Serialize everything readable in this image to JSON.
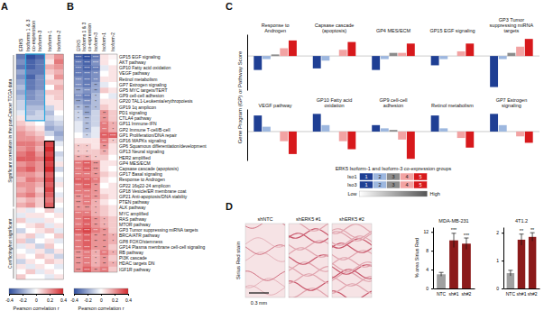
{
  "chart_data": [
    {
      "type": "heatmap",
      "panel": "A",
      "columns": [
        "ERK5",
        "Isoforms 1 & 3 co-expression",
        "Isoform-3",
        "Isoform-1",
        "Isoform-2"
      ],
      "values": [
        [
          -0.3,
          -0.4,
          -0.35,
          0.1,
          0.2
        ],
        [
          -0.25,
          -0.35,
          -0.3,
          0.05,
          0.25
        ],
        [
          -0.3,
          -0.35,
          -0.3,
          0.15,
          0.2
        ],
        [
          -0.2,
          -0.3,
          -0.3,
          0.1,
          0.15
        ],
        [
          -0.25,
          -0.35,
          -0.25,
          0.05,
          0.2
        ],
        [
          -0.2,
          -0.3,
          -0.25,
          0.1,
          0.1
        ],
        [
          -0.15,
          -0.3,
          -0.25,
          0.0,
          0.15
        ],
        [
          -0.2,
          -0.25,
          -0.2,
          0.1,
          0.1
        ],
        [
          -0.15,
          -0.25,
          -0.2,
          0.05,
          0.1
        ],
        [
          -0.1,
          -0.2,
          -0.2,
          0.05,
          0.05
        ],
        [
          -0.1,
          -0.15,
          -0.15,
          -0.1,
          0.05
        ],
        [
          -0.05,
          -0.15,
          -0.1,
          -0.15,
          0.0
        ],
        [
          0.05,
          -0.1,
          -0.1,
          -0.1,
          -0.05
        ],
        [
          0.1,
          0.05,
          0.0,
          -0.15,
          -0.1
        ],
        [
          0.15,
          0.1,
          0.05,
          -0.2,
          -0.15
        ],
        [
          0.2,
          0.15,
          0.1,
          -0.1,
          -0.2
        ],
        [
          0.2,
          0.2,
          0.15,
          0.0,
          -0.15
        ],
        [
          0.25,
          0.25,
          0.2,
          0.35,
          -0.05
        ],
        [
          0.2,
          0.25,
          0.15,
          0.4,
          0.0
        ],
        [
          0.25,
          0.3,
          0.2,
          0.35,
          -0.1
        ],
        [
          0.3,
          0.3,
          0.25,
          0.4,
          -0.05
        ],
        [
          0.2,
          0.25,
          0.2,
          0.35,
          0.05
        ],
        [
          0.25,
          0.3,
          0.2,
          0.4,
          -0.1
        ],
        [
          0.2,
          0.2,
          0.15,
          0.3,
          0.0
        ],
        [
          0.15,
          0.25,
          0.2,
          0.35,
          -0.05
        ],
        [
          0.2,
          0.2,
          0.15,
          0.3,
          0.05
        ],
        [
          0.15,
          0.2,
          0.1,
          0.35,
          0.0
        ],
        [
          0.2,
          0.25,
          0.15,
          0.3,
          -0.05
        ],
        [
          0.1,
          0.15,
          0.1,
          0.25,
          0.05
        ],
        [
          0.15,
          0.2,
          0.1,
          0.3,
          0.0
        ],
        [
          0.05,
          -0.05,
          0.0,
          0.1,
          -0.05
        ],
        [
          -0.05,
          0.05,
          0.05,
          0.0,
          0.05
        ],
        [
          0.1,
          -0.05,
          -0.05,
          0.05,
          0.0
        ],
        [
          0.0,
          0.05,
          0.1,
          -0.05,
          0.05
        ],
        [
          -0.1,
          0.0,
          0.05,
          0.1,
          -0.05
        ],
        [
          0.05,
          0.1,
          -0.05,
          0.0,
          0.1
        ],
        [
          0.1,
          -0.1,
          0.0,
          0.05,
          -0.05
        ],
        [
          -0.05,
          0.05,
          -0.1,
          0.1,
          0.0
        ],
        [
          0.0,
          -0.05,
          0.05,
          -0.1,
          0.05
        ],
        [
          0.05,
          0.0,
          0.1,
          0.05,
          -0.1
        ],
        [
          -0.1,
          0.05,
          0.0,
          0.1,
          0.05
        ],
        [
          0.05,
          -0.05,
          0.05,
          0.0,
          -0.05
        ],
        [
          0.0,
          0.1,
          -0.05,
          0.05,
          0.0
        ],
        [
          0.1,
          0.0,
          0.0,
          -0.05,
          0.05
        ]
      ],
      "row_groups": [
        {
          "label": "Significant correlation in the pan-Cancer TCGA data",
          "rows": [
            0,
            29
          ]
        },
        {
          "label": "Conflicting/not significant",
          "rows": [
            30,
            43
          ]
        }
      ],
      "boxes": [
        {
          "color": "#29a9e0",
          "rows": [
            0,
            12
          ],
          "cols": [
            1,
            2
          ]
        },
        {
          "color": "#000000",
          "rows": [
            17,
            29
          ],
          "cols": [
            3,
            3
          ]
        }
      ],
      "colorbar": {
        "range": [
          -0.4,
          0.4
        ],
        "ticks": [
          -0.4,
          -0.2,
          0,
          0.2,
          0.4
        ],
        "label": "Pearson correlation r",
        "colormap": [
          "#2f4e9e",
          "#ffffff",
          "#d42a2f"
        ]
      }
    },
    {
      "type": "heatmap",
      "panel": "B",
      "columns": [
        "ERK5",
        "Isoforms 1 & 3 co-expression",
        "Isoform-3",
        "Isoform-1",
        "Isoform-2"
      ],
      "rows": [
        "GP15 EGF signaling",
        "AKT pathway",
        "GP10 Fatty acid oxidation",
        "VEGF pathway",
        "Retinol metabolism",
        "GP7 Estrogen signaling",
        "GP5 MYC targets/TERT",
        "GP9 cell-cell adhesion",
        "GP20 TAL1-Leukemia/erythropoiesis",
        "GP19 1q amplicon",
        "PD1 signaling",
        "CTLA4 pathway",
        "GP11 Immune-IFN",
        "GP2 Immune T-cell/B-cell",
        "GP1 Proliferation/DNA repair",
        "GP16 MAPKs signaling",
        "GP6 Squamous differentiation/development",
        "GP13 Neural signaling",
        "HER2 amplified",
        "GP4 MES/ECM",
        "Capsase cascade (apoptosis)",
        "GP17 Basal signaling",
        "Response to Androgen",
        "GP22 16q22-24 amplicon",
        "GP18 Vesicle/ER membrane coat",
        "GP21 Anti-apoptosis/DNA stability",
        "PTEN pathway",
        "ALK pathway",
        "MYC amplified",
        "RAS pathway",
        "MTOR pathway",
        "GP3 Tumor suppressing miRNA targets",
        "BRCA/ATR pathway",
        "GP8 FOXO/stemness",
        "GP14 Plasma membrane cell-cell signaling",
        "RB pathway",
        "PI3K cascade",
        "HDAC targets DN",
        "IGF1R pathway"
      ],
      "values": [
        [
          -0.35,
          -0.4,
          -0.3,
          0.05,
          0.02
        ],
        [
          -0.3,
          -0.35,
          -0.25,
          0.05,
          0.0
        ],
        [
          -0.3,
          -0.35,
          -0.3,
          -0.05,
          0.05
        ],
        [
          -0.3,
          -0.3,
          -0.25,
          0.0,
          0.05
        ],
        [
          -0.25,
          -0.3,
          -0.25,
          0.05,
          0.05
        ],
        [
          -0.25,
          -0.3,
          -0.2,
          -0.05,
          0.0
        ],
        [
          -0.2,
          -0.25,
          -0.2,
          0.1,
          0.05
        ],
        [
          -0.25,
          -0.3,
          -0.15,
          0.0,
          -0.05
        ],
        [
          -0.2,
          -0.25,
          -0.15,
          0.05,
          0.05
        ],
        [
          -0.15,
          -0.2,
          -0.15,
          0.1,
          0.05
        ],
        [
          -0.1,
          -0.2,
          -0.1,
          0.2,
          0.1
        ],
        [
          -0.1,
          -0.15,
          -0.1,
          0.2,
          0.1
        ],
        [
          -0.05,
          -0.15,
          -0.1,
          0.25,
          0.15
        ],
        [
          -0.05,
          -0.15,
          -0.05,
          0.25,
          0.15
        ],
        [
          0.0,
          -0.1,
          -0.05,
          0.3,
          0.3
        ],
        [
          0.05,
          0.05,
          0.05,
          0.25,
          0.1
        ],
        [
          0.1,
          0.1,
          0.05,
          0.2,
          0.05
        ],
        [
          0.1,
          0.1,
          0.1,
          0.15,
          0.05
        ],
        [
          0.15,
          0.15,
          0.1,
          0.1,
          0.0
        ],
        [
          0.25,
          0.3,
          0.2,
          0.05,
          0.05
        ],
        [
          0.25,
          0.3,
          0.2,
          0.05,
          0.0
        ],
        [
          0.25,
          0.25,
          0.2,
          0.1,
          0.05
        ],
        [
          0.3,
          0.3,
          0.25,
          0.05,
          0.0
        ],
        [
          0.25,
          0.3,
          0.2,
          0.0,
          0.05
        ],
        [
          0.25,
          0.25,
          0.2,
          0.05,
          0.05
        ],
        [
          0.2,
          0.25,
          0.2,
          0.1,
          0.05
        ],
        [
          0.2,
          0.25,
          0.15,
          0.05,
          0.0
        ],
        [
          0.2,
          0.2,
          0.15,
          0.1,
          0.05
        ],
        [
          0.25,
          0.25,
          0.15,
          0.1,
          0.05
        ],
        [
          0.25,
          0.3,
          0.2,
          0.15,
          0.1
        ],
        [
          0.25,
          0.3,
          0.2,
          0.15,
          0.1
        ],
        [
          0.3,
          0.35,
          0.25,
          0.2,
          0.1
        ],
        [
          0.25,
          0.3,
          0.2,
          0.2,
          0.15
        ],
        [
          0.25,
          0.3,
          0.2,
          0.2,
          0.15
        ],
        [
          0.25,
          0.3,
          0.2,
          0.2,
          0.1
        ],
        [
          0.2,
          0.25,
          0.15,
          0.25,
          0.15
        ],
        [
          0.2,
          0.25,
          0.15,
          0.2,
          0.1
        ],
        [
          0.2,
          0.25,
          0.15,
          0.2,
          0.15
        ],
        [
          0.2,
          0.3,
          0.2,
          0.25,
          0.1
        ]
      ],
      "stars": [
        [
          "****",
          "****",
          "****",
          null,
          null
        ],
        [
          "****",
          "****",
          "****",
          null,
          null
        ],
        [
          "****",
          "****",
          "****",
          null,
          null
        ],
        [
          "****",
          "****",
          "***",
          null,
          null
        ],
        [
          "****",
          "****",
          "***",
          null,
          null
        ],
        [
          "****",
          "****",
          "**",
          null,
          null
        ],
        [
          "***",
          "****",
          "**",
          null,
          null
        ],
        [
          "****",
          "****",
          "*",
          null,
          null
        ],
        [
          "***",
          "****",
          "*",
          null,
          null
        ],
        [
          "**",
          "***",
          "*",
          null,
          null
        ],
        [
          "*",
          "***",
          null,
          "**",
          null
        ],
        [
          "*",
          "***",
          null,
          "**",
          null
        ],
        [
          null,
          "**",
          null,
          "***",
          "*"
        ],
        [
          null,
          "**",
          null,
          "***",
          "*"
        ],
        [
          null,
          "*",
          null,
          "***",
          "****"
        ],
        [
          null,
          null,
          null,
          "***",
          "*"
        ],
        [
          "*",
          "*",
          null,
          "**",
          null
        ],
        [
          "*",
          "*",
          null,
          "**",
          null
        ],
        [
          "**",
          "**",
          "*",
          null,
          null
        ],
        [
          "****",
          "****",
          "***",
          null,
          null
        ],
        [
          "****",
          "****",
          "***",
          null,
          null
        ],
        [
          "****",
          "****",
          "**",
          null,
          null
        ],
        [
          "****",
          "****",
          "***",
          null,
          null
        ],
        [
          "****",
          "****",
          "**",
          null,
          null
        ],
        [
          "****",
          "****",
          "**",
          null,
          null
        ],
        [
          "***",
          "****",
          "**",
          null,
          null
        ],
        [
          "***",
          "****",
          "*",
          null,
          null
        ],
        [
          "**",
          "***",
          "*",
          null,
          null
        ],
        [
          "****",
          "***",
          "*",
          null,
          null
        ],
        [
          "****",
          "****",
          "**",
          "*",
          null
        ],
        [
          "****",
          "****",
          "**",
          "*",
          null
        ],
        [
          "****",
          "****",
          "***",
          "**",
          null
        ],
        [
          "****",
          "****",
          "**",
          "**",
          "*"
        ],
        [
          "****",
          "****",
          "**",
          "**",
          "*"
        ],
        [
          "****",
          "****",
          "**",
          "**",
          null
        ],
        [
          "***",
          "****",
          "*",
          "***",
          "*"
        ],
        [
          "***",
          "****",
          "*",
          "**",
          null
        ],
        [
          "***",
          "****",
          "*",
          "**",
          "*"
        ],
        [
          "***",
          "****",
          "**",
          "***",
          null
        ]
      ],
      "colorbar": {
        "range": [
          -0.4,
          0.4
        ],
        "ticks": [
          -0.4,
          -0.2,
          0,
          0.2,
          0.4
        ],
        "label": "Pearson correlation r",
        "colormap": [
          "#2f4e9e",
          "#ffffff",
          "#d42a2f"
        ]
      }
    },
    {
      "type": "bar",
      "panel": "C",
      "y_label": "Gene Program (GP) or Pathway Score",
      "tick_labels": false,
      "categories": [
        "Response to Androgen",
        "Capsase cascade (apoptosis)",
        "GP4 MES/ECM",
        "GP15 EGF signaling",
        "GP3 Tumor suppressing miRNA targets"
      ],
      "ylim": [
        -1.1,
        0.7
      ],
      "series": [
        {
          "name": "1",
          "color": "#1f3f94",
          "values": [
            -0.45,
            -0.4,
            -0.45,
            -0.3,
            -1.0
          ]
        },
        {
          "name": "2",
          "color": "#9db7df",
          "values": [
            -0.1,
            -0.15,
            -0.1,
            -0.1,
            -0.1
          ]
        },
        {
          "name": "3",
          "color": "#8c8c8c",
          "values": [
            0.05,
            0.0,
            0.1,
            0.0,
            0.1
          ]
        },
        {
          "name": "4",
          "color": "#f2a3a3",
          "values": [
            0.25,
            0.2,
            0.1,
            0.15,
            0.3
          ]
        },
        {
          "name": "5",
          "color": "#d7191c",
          "values": [
            0.5,
            0.45,
            0.4,
            0.4,
            0.55
          ]
        }
      ]
    },
    {
      "type": "bar",
      "tick_labels": false,
      "categories": [
        "VEGF pathway",
        "GP10 Fatty acid oxidation",
        "GP9 cell-cell adhesion",
        "Retinol metabolism",
        "GP7 Estrogen signaling"
      ],
      "ylim": [
        -0.9,
        0.7
      ],
      "series": [
        {
          "name": "1",
          "color": "#1f3f94",
          "values": [
            0.5,
            0.55,
            0.2,
            0.5,
            0.55
          ]
        },
        {
          "name": "2",
          "color": "#9db7df",
          "values": [
            0.15,
            0.2,
            0.1,
            0.1,
            0.2
          ]
        },
        {
          "name": "3",
          "color": "#8c8c8c",
          "values": [
            0.0,
            0.0,
            0.05,
            0.0,
            0.0
          ]
        },
        {
          "name": "4",
          "color": "#f2a3a3",
          "values": [
            -0.3,
            -0.3,
            -0.25,
            -0.2,
            -0.15
          ]
        },
        {
          "name": "5",
          "color": "#d7191c",
          "values": [
            -0.7,
            -0.55,
            -0.85,
            -0.5,
            -0.35
          ]
        }
      ],
      "legend_title": "ERK5 Isoform-1 and Isoform-3 co-expression groups",
      "legend_rows": [
        "Iso1",
        "Iso3"
      ],
      "legend_ends": [
        "Low",
        "High"
      ]
    },
    {
      "type": "image",
      "panel": "D",
      "title": "Sirius Red stain",
      "labels": [
        "shNTC",
        "shERK5 #1",
        "shERK5 #2"
      ],
      "scale_bar": "0.3 mm"
    },
    {
      "type": "bar",
      "title": "MDA-MB-231",
      "y_label": "% area Sirius Red",
      "categories": [
        "NTC",
        "sh#1",
        "sh#2"
      ],
      "values": [
        3.0,
        10.2,
        9.5
      ],
      "errors": [
        0.4,
        1.5,
        1.2
      ],
      "stars": [
        null,
        "***",
        "***"
      ],
      "colors": [
        "#a0a0a0",
        "#8b1a1a",
        "#8b1a1a"
      ],
      "ylim": [
        0,
        13
      ],
      "yticks": [
        0,
        4,
        8,
        12
      ]
    },
    {
      "type": "bar",
      "title": "4T1.2",
      "categories": [
        "NTC",
        "sh#1",
        "sh#2"
      ],
      "values": [
        0.55,
        1.75,
        1.85
      ],
      "errors": [
        0.1,
        0.2,
        0.15
      ],
      "stars": [
        null,
        "**",
        "**"
      ],
      "colors": [
        "#a0a0a0",
        "#8b1a1a",
        "#8b1a1a"
      ],
      "ylim": [
        0,
        2.2
      ],
      "yticks": [
        0,
        1,
        2
      ]
    }
  ]
}
